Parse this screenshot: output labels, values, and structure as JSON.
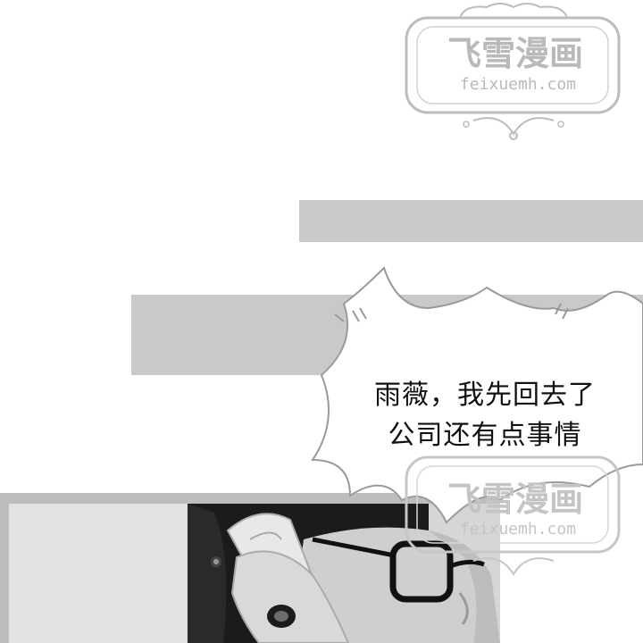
{
  "watermark": {
    "title": "飞雪漫画",
    "url": "feixuemh.com"
  },
  "speech_bubble": {
    "lines": [
      "雨薇，我先回去了",
      "公司还有点事情"
    ]
  },
  "colors": {
    "strip_gray": "#c9c9c9",
    "watermark_gray": "#b9b9b9",
    "bubble_outline": "#9a9a9a",
    "text": "#111111"
  }
}
